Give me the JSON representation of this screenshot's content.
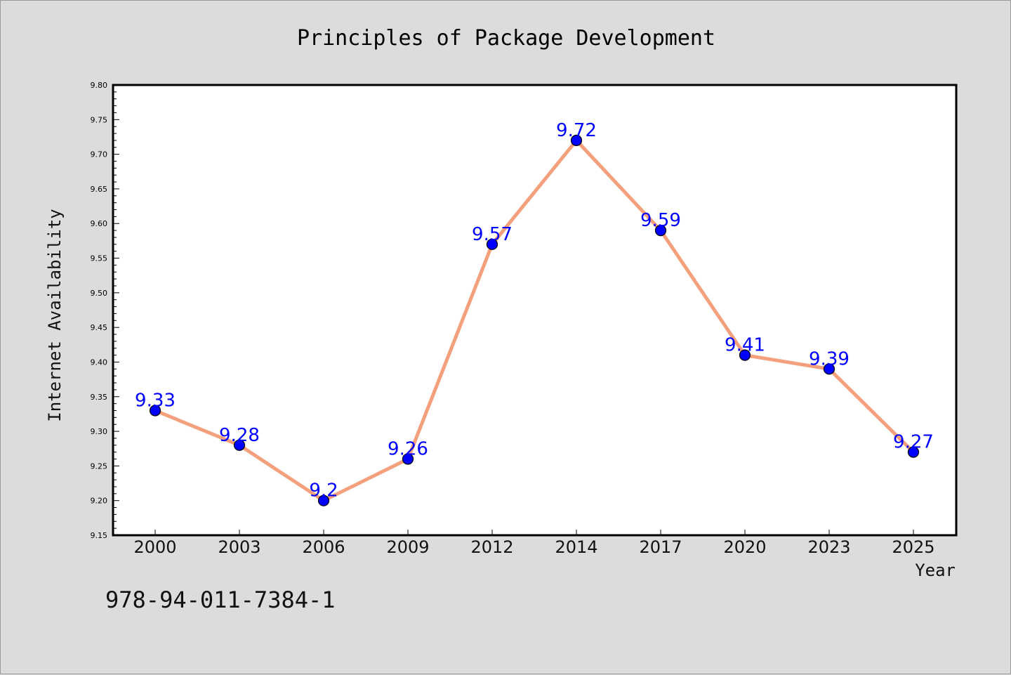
{
  "chart_data": {
    "type": "line",
    "title": "Principles of Package Development",
    "xlabel": "Year",
    "ylabel": "Internet Availability",
    "categories": [
      "2000",
      "2003",
      "2006",
      "2009",
      "2012",
      "2014",
      "2017",
      "2020",
      "2023",
      "2025"
    ],
    "series": [
      {
        "values": [
          9.33,
          9.28,
          9.2,
          9.26,
          9.57,
          9.72,
          9.59,
          9.41,
          9.39,
          9.27
        ],
        "labels": [
          "9.33",
          "9.28",
          "9.2",
          "9.26",
          "9.57",
          "9.72",
          "9.59",
          "9.41",
          "9.39",
          "9.27"
        ],
        "line_color": "#f4a07d",
        "marker_color": "#0000ff"
      }
    ],
    "ylim": [
      9.15,
      9.8
    ],
    "yticks": [
      "9.15",
      "9.20",
      "9.25",
      "9.30",
      "9.35",
      "9.40",
      "9.45",
      "9.50",
      "9.55",
      "9.60",
      "9.65",
      "9.70",
      "9.75",
      "9.80"
    ],
    "grid": false,
    "legend": "none"
  },
  "footer": {
    "isbn": "978-94-011-7384-1"
  },
  "colors": {
    "background": "#dcdcdc",
    "plot_background": "#ffffff",
    "line": "#f4a07d",
    "marker": "#0000ff",
    "data_label": "#0000ff"
  }
}
